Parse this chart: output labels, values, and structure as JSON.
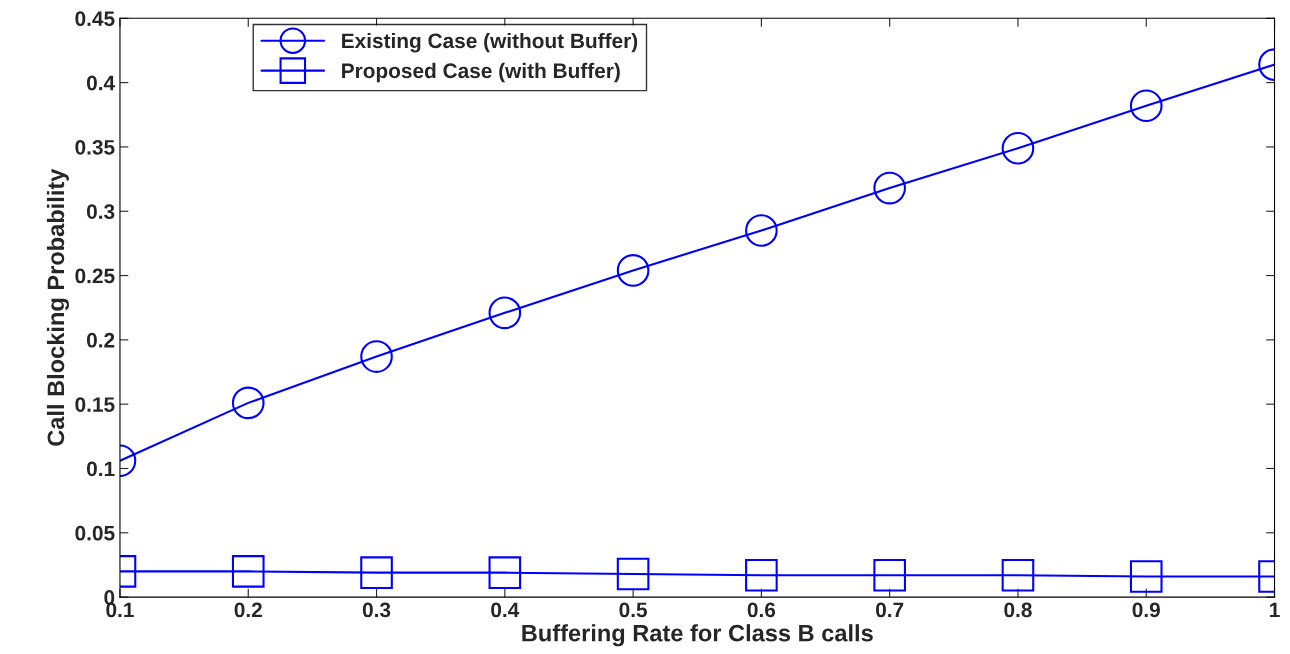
{
  "chart_data": {
    "type": "line",
    "xlabel": "Buffering Rate for Class B calls",
    "ylabel": "Call Blocking Probability",
    "x": [
      0.1,
      0.2,
      0.3,
      0.4,
      0.5,
      0.6,
      0.7,
      0.8,
      0.9,
      1.0
    ],
    "series": [
      {
        "name": "Existing Case (without Buffer)",
        "color": "#0000ff",
        "marker": "circle",
        "values": [
          0.106,
          0.151,
          0.187,
          0.221,
          0.254,
          0.285,
          0.318,
          0.349,
          0.382,
          0.414
        ]
      },
      {
        "name": "Proposed Case (with Buffer)",
        "color": "#0000ff",
        "marker": "square",
        "values": [
          0.02,
          0.02,
          0.019,
          0.019,
          0.018,
          0.017,
          0.017,
          0.017,
          0.016,
          0.016
        ]
      }
    ],
    "xlim": [
      0.1,
      1
    ],
    "xticks": [
      0.1,
      0.2,
      0.3,
      0.4,
      0.5,
      0.6,
      0.7,
      0.8,
      0.9,
      1
    ],
    "ylim": [
      0,
      0.45
    ],
    "yticks": [
      0,
      0.05,
      0.1,
      0.15,
      0.2,
      0.25,
      0.3,
      0.35,
      0.4,
      0.45
    ],
    "grid": false,
    "legend": "top left",
    "line_style": "solid"
  }
}
